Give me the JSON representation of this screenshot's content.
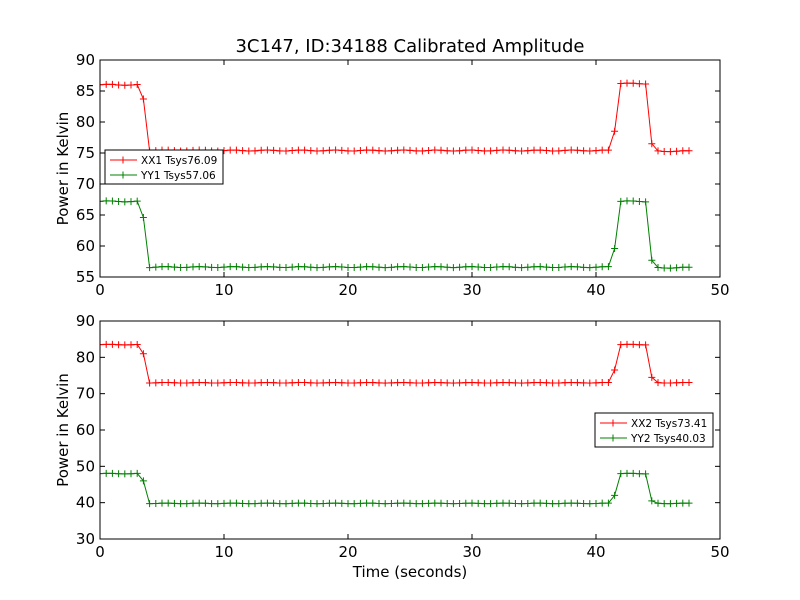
{
  "figure": {
    "title": "3C147, ID:34188 Calibrated Amplitude",
    "xlabel": "Time (seconds)"
  },
  "chart_data": [
    {
      "type": "line",
      "ylabel": "Power in Kelvin",
      "xlim": [
        0,
        50
      ],
      "ylim": [
        55,
        90
      ],
      "xticks": [
        0,
        10,
        20,
        30,
        40,
        50
      ],
      "yticks": [
        55,
        60,
        65,
        70,
        75,
        80,
        85,
        90
      ],
      "legend_position": "center-left",
      "series": [
        {
          "name": "XX1 Tsys76.09",
          "color": "#ff0000",
          "segments": [
            {
              "x_start": 0.0,
              "x_end": 3.0,
              "value": 86.0
            },
            {
              "x_start": 3.5,
              "x_end": 3.5,
              "value": 83.7
            },
            {
              "x_start": 4.0,
              "x_end": 41.0,
              "value": 75.4
            },
            {
              "x_start": 41.5,
              "x_end": 41.5,
              "value": 78.5
            },
            {
              "x_start": 42.0,
              "x_end": 44.0,
              "value": 86.2
            },
            {
              "x_start": 44.5,
              "x_end": 44.5,
              "value": 76.5
            },
            {
              "x_start": 45.0,
              "x_end": 47.5,
              "value": 75.3
            }
          ]
        },
        {
          "name": "YY1 Tsys57.06",
          "color": "#008000",
          "segments": [
            {
              "x_start": 0.0,
              "x_end": 3.0,
              "value": 67.2
            },
            {
              "x_start": 3.5,
              "x_end": 3.5,
              "value": 64.6
            },
            {
              "x_start": 4.0,
              "x_end": 41.0,
              "value": 56.6
            },
            {
              "x_start": 41.5,
              "x_end": 41.5,
              "value": 59.6
            },
            {
              "x_start": 42.0,
              "x_end": 44.0,
              "value": 67.2
            },
            {
              "x_start": 44.5,
              "x_end": 44.5,
              "value": 57.7
            },
            {
              "x_start": 45.0,
              "x_end": 47.5,
              "value": 56.5
            }
          ]
        }
      ]
    },
    {
      "type": "line",
      "ylabel": "Power in Kelvin",
      "xlim": [
        0,
        50
      ],
      "ylim": [
        30,
        90
      ],
      "xticks": [
        0,
        10,
        20,
        30,
        40,
        50
      ],
      "yticks": [
        30,
        40,
        50,
        60,
        70,
        80,
        90
      ],
      "legend_position": "center-right",
      "series": [
        {
          "name": "XX2 Tsys73.41",
          "color": "#ff0000",
          "segments": [
            {
              "x_start": 0.0,
              "x_end": 3.0,
              "value": 83.5
            },
            {
              "x_start": 3.5,
              "x_end": 3.5,
              "value": 81.0
            },
            {
              "x_start": 4.0,
              "x_end": 41.0,
              "value": 73.0
            },
            {
              "x_start": 41.5,
              "x_end": 41.5,
              "value": 76.5
            },
            {
              "x_start": 42.0,
              "x_end": 44.0,
              "value": 83.5
            },
            {
              "x_start": 44.5,
              "x_end": 44.5,
              "value": 74.5
            },
            {
              "x_start": 45.0,
              "x_end": 47.5,
              "value": 73.0
            }
          ]
        },
        {
          "name": "YY2 Tsys40.03",
          "color": "#008000",
          "segments": [
            {
              "x_start": 0.0,
              "x_end": 3.0,
              "value": 48.0
            },
            {
              "x_start": 3.5,
              "x_end": 3.5,
              "value": 46.0
            },
            {
              "x_start": 4.0,
              "x_end": 41.0,
              "value": 39.8
            },
            {
              "x_start": 41.5,
              "x_end": 41.5,
              "value": 42.0
            },
            {
              "x_start": 42.0,
              "x_end": 44.0,
              "value": 48.0
            },
            {
              "x_start": 44.5,
              "x_end": 44.5,
              "value": 40.5
            },
            {
              "x_start": 45.0,
              "x_end": 47.5,
              "value": 39.8
            }
          ]
        }
      ]
    }
  ]
}
